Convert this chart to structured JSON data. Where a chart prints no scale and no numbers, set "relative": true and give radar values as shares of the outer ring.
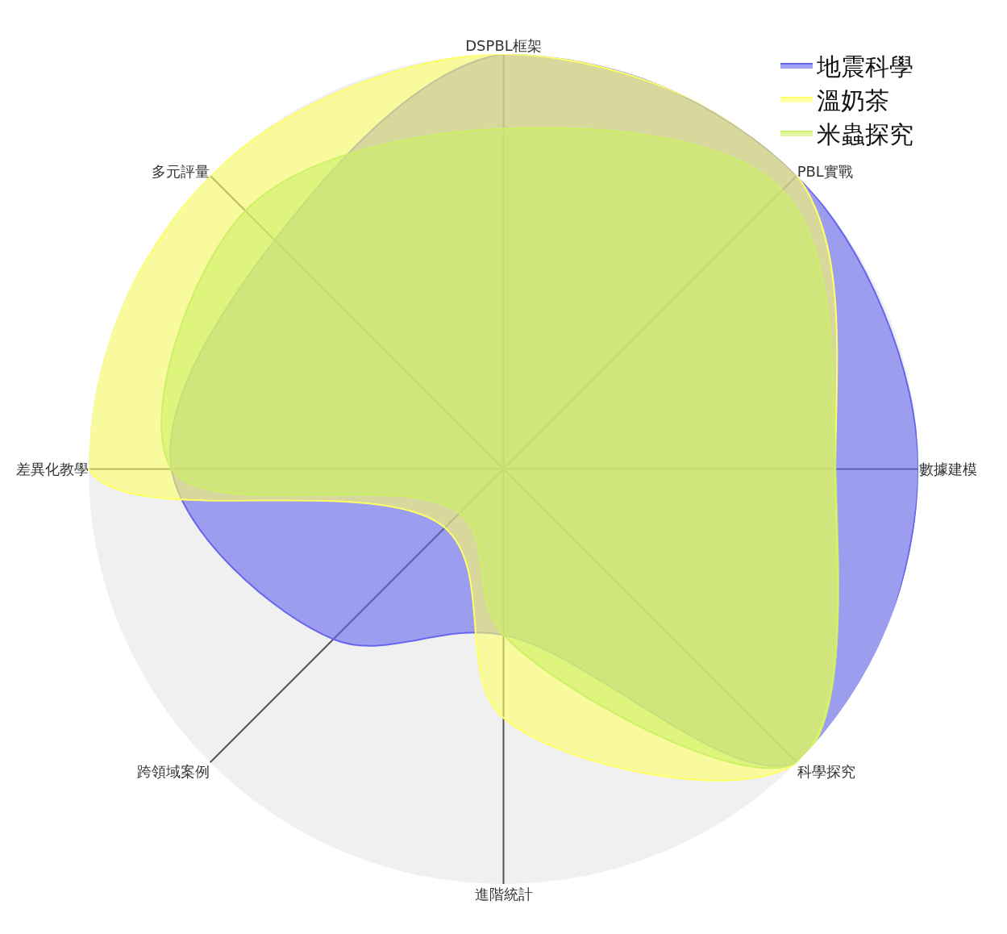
{
  "chart_data": {
    "type": "radar",
    "relative": true,
    "grid": true,
    "legend": "top right",
    "marker": "none",
    "categories": [
      "DSPBL框架",
      "PBL實戰",
      "數據建模",
      "科學探究",
      "進階統計",
      "跨領域案例",
      "差異化教學",
      "多元評量"
    ],
    "series": [
      {
        "name": "地震科學",
        "color": "#6666ee",
        "values": [
          1.0,
          1.0,
          1.0,
          1.0,
          0.4,
          0.58,
          0.8,
          0.78
        ]
      },
      {
        "name": "溫奶茶",
        "color": "#ffff66",
        "values": [
          1.0,
          1.0,
          0.8,
          1.0,
          0.6,
          0.2,
          1.0,
          1.0
        ]
      },
      {
        "name": "米蟲探究",
        "color": "#ccf066",
        "values": [
          0.82,
          0.95,
          0.8,
          1.0,
          0.4,
          0.15,
          0.8,
          0.88
        ]
      }
    ]
  }
}
